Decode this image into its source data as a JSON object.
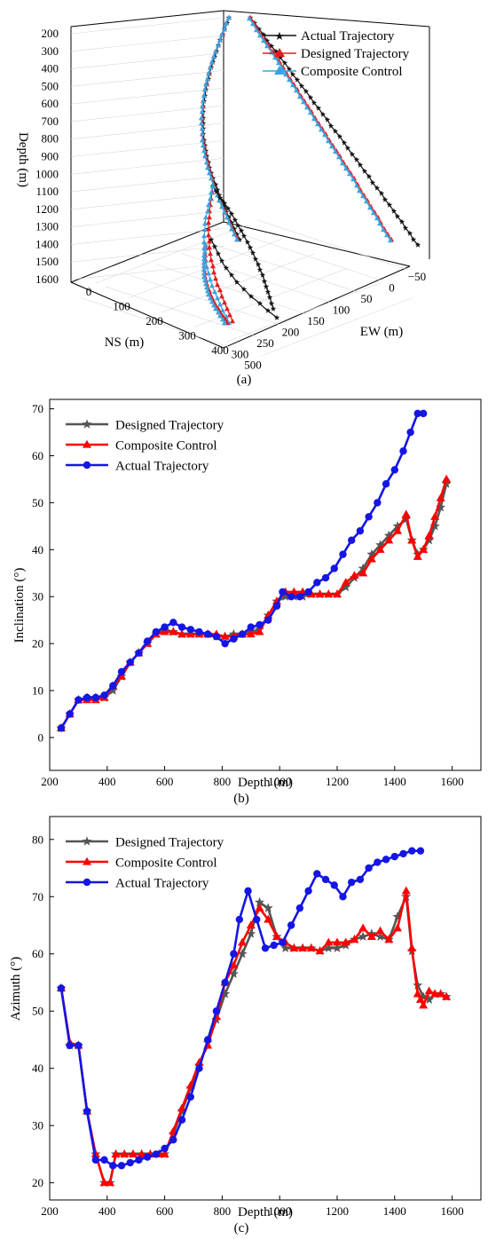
{
  "panel_a": {
    "caption": "(a)",
    "legend": [
      "Actual Trajectory",
      "Designed Trajectory",
      "Composite Control"
    ],
    "colors": {
      "actual": "#111111",
      "designed": "#e41a1c",
      "composite": "#3aa3e3"
    },
    "depth_label": "Depth (m)",
    "depth_ticks": [
      "200",
      "300",
      "400",
      "500",
      "600",
      "700",
      "800",
      "900",
      "1000",
      "1100",
      "1200",
      "1300",
      "1400",
      "1500",
      "1600"
    ],
    "ns_label": "NS (m)",
    "ns_ticks": [
      "0",
      "100",
      "200",
      "300",
      "400",
      "500"
    ],
    "ew_label": "EW (m)",
    "ew_ticks": [
      "−50",
      "0",
      "50",
      "100",
      "150",
      "200",
      "250",
      "300"
    ]
  },
  "chart_data": [
    {
      "type": "line",
      "caption": "(b)",
      "xlabel": "Depth (m)",
      "ylabel": "Inclination (°)",
      "xlim": [
        200,
        1700
      ],
      "ylim": [
        -7,
        72
      ],
      "xticks": [
        200,
        400,
        600,
        800,
        1000,
        1200,
        1400,
        1600
      ],
      "yticks": [
        0,
        10,
        20,
        30,
        40,
        50,
        60,
        70
      ],
      "series": [
        {
          "name": "Designed Trajectory",
          "color": "#555555",
          "marker": "star",
          "x": [
            240,
            270,
            300,
            330,
            360,
            390,
            420,
            450,
            480,
            510,
            540,
            570,
            600,
            630,
            660,
            690,
            720,
            750,
            780,
            810,
            840,
            870,
            900,
            930,
            960,
            990,
            1020,
            1050,
            1080,
            1110,
            1140,
            1170,
            1200,
            1230,
            1260,
            1290,
            1320,
            1350,
            1380,
            1410,
            1440,
            1460,
            1480,
            1500,
            1520,
            1540,
            1560,
            1580
          ],
          "y": [
            2,
            5,
            8,
            8.5,
            8.5,
            8.5,
            10,
            13,
            16,
            18,
            20,
            22,
            23,
            22.5,
            22,
            22,
            22,
            22,
            21.5,
            21.5,
            22,
            22,
            22.5,
            23,
            26,
            29,
            30,
            30,
            30,
            30.5,
            30.5,
            30.5,
            30.5,
            32,
            34,
            36,
            39,
            41,
            43,
            45,
            46.5,
            42,
            39,
            40,
            42,
            45,
            49,
            54
          ]
        },
        {
          "name": "Composite Control",
          "color": "#ff0000",
          "marker": "triangle",
          "x": [
            240,
            270,
            300,
            330,
            360,
            390,
            420,
            450,
            480,
            510,
            540,
            570,
            600,
            630,
            660,
            690,
            720,
            750,
            780,
            810,
            840,
            870,
            900,
            930,
            960,
            990,
            1020,
            1050,
            1080,
            1110,
            1140,
            1170,
            1200,
            1230,
            1260,
            1290,
            1320,
            1350,
            1380,
            1410,
            1440,
            1460,
            1480,
            1500,
            1520,
            1540,
            1560,
            1580
          ],
          "y": [
            2,
            5,
            8,
            8,
            8,
            8.5,
            11,
            13,
            16,
            18,
            20,
            22,
            22.5,
            22.5,
            22,
            22,
            22,
            22,
            22,
            21.5,
            21.5,
            22,
            22,
            22.5,
            26,
            29,
            31,
            31,
            31,
            30.5,
            30.5,
            30.5,
            30.5,
            33,
            34.5,
            35,
            38,
            40,
            42,
            44,
            47.5,
            42,
            38.5,
            40,
            43,
            47,
            51,
            55
          ]
        },
        {
          "name": "Actual Trajectory",
          "color": "#1515e6",
          "marker": "circle",
          "x": [
            240,
            270,
            300,
            330,
            360,
            390,
            420,
            450,
            480,
            510,
            540,
            570,
            600,
            630,
            660,
            690,
            720,
            750,
            780,
            810,
            840,
            870,
            900,
            930,
            960,
            990,
            1010,
            1040,
            1070,
            1100,
            1130,
            1160,
            1190,
            1220,
            1250,
            1280,
            1310,
            1340,
            1370,
            1400,
            1430,
            1455,
            1480,
            1500
          ],
          "y": [
            2,
            5,
            8,
            8.5,
            8.5,
            9,
            11,
            14,
            16,
            18,
            20.5,
            22.5,
            23.5,
            24.5,
            23.5,
            23,
            22.5,
            22,
            21.5,
            20,
            21,
            22,
            23.5,
            24,
            25,
            28,
            31,
            30,
            30,
            31,
            33,
            34,
            36,
            39,
            42,
            44,
            47,
            50,
            54,
            57,
            61,
            65,
            69,
            69
          ]
        }
      ]
    },
    {
      "type": "line",
      "caption": "(c)",
      "xlabel": "Depth (m)",
      "ylabel": "Azimuth (°)",
      "xlim": [
        200,
        1700
      ],
      "ylim": [
        17,
        84
      ],
      "xticks": [
        200,
        400,
        600,
        800,
        1000,
        1200,
        1400,
        1600
      ],
      "yticks": [
        20,
        30,
        40,
        50,
        60,
        70,
        80
      ],
      "series": [
        {
          "name": "Designed Trajectory",
          "color": "#555555",
          "marker": "star",
          "x": [
            240,
            270,
            300,
            330,
            360,
            390,
            410,
            430,
            460,
            490,
            520,
            550,
            580,
            600,
            630,
            660,
            690,
            720,
            750,
            780,
            810,
            840,
            870,
            900,
            930,
            960,
            990,
            1020,
            1050,
            1080,
            1110,
            1140,
            1170,
            1200,
            1230,
            1260,
            1290,
            1320,
            1350,
            1380,
            1410,
            1440,
            1460,
            1480,
            1500,
            1520,
            1540,
            1560,
            1580
          ],
          "y": [
            54,
            44,
            44,
            32.5,
            25,
            20,
            20,
            25,
            25,
            25,
            25,
            25,
            25,
            25,
            28.5,
            32.5,
            36.5,
            40.5,
            44.5,
            48.5,
            53,
            56.5,
            60,
            63.5,
            69,
            68,
            63,
            61,
            61,
            61,
            61,
            60.5,
            61,
            61,
            61.5,
            62.5,
            63,
            63.5,
            63,
            62.5,
            66.5,
            70,
            60.5,
            54.5,
            52.5,
            52,
            53,
            53,
            52.5
          ]
        },
        {
          "name": "Composite Control",
          "color": "#ff0000",
          "marker": "triangle",
          "x": [
            240,
            270,
            300,
            330,
            360,
            390,
            410,
            430,
            460,
            490,
            520,
            550,
            580,
            600,
            630,
            660,
            690,
            720,
            750,
            780,
            810,
            840,
            870,
            900,
            930,
            960,
            990,
            1020,
            1050,
            1080,
            1110,
            1140,
            1170,
            1200,
            1230,
            1260,
            1290,
            1320,
            1350,
            1380,
            1410,
            1440,
            1460,
            1480,
            1490,
            1500,
            1520,
            1540,
            1560,
            1580
          ],
          "y": [
            54,
            44.5,
            44,
            32.5,
            25,
            20,
            20,
            25,
            25,
            25,
            25,
            25,
            25,
            25,
            29,
            33,
            37,
            41,
            44,
            49,
            55,
            58,
            62,
            65,
            68,
            66,
            63,
            62,
            61,
            61,
            61,
            60.5,
            62,
            62,
            62,
            62.5,
            64.5,
            63,
            64,
            62.5,
            64.5,
            71,
            61,
            53,
            52,
            51,
            53.5,
            53,
            53,
            52.5
          ]
        },
        {
          "name": "Actual Trajectory",
          "color": "#1515e6",
          "marker": "circle",
          "x": [
            240,
            270,
            300,
            330,
            360,
            390,
            420,
            450,
            480,
            510,
            540,
            570,
            600,
            630,
            660,
            690,
            720,
            750,
            780,
            810,
            840,
            860,
            890,
            920,
            950,
            980,
            1010,
            1040,
            1070,
            1100,
            1130,
            1160,
            1190,
            1220,
            1250,
            1280,
            1310,
            1340,
            1370,
            1400,
            1430,
            1460,
            1490
          ],
          "y": [
            54,
            44,
            44,
            32.5,
            24,
            24,
            23,
            23,
            23.5,
            24,
            24.5,
            25,
            26,
            27.5,
            31,
            35,
            40,
            45,
            50,
            55,
            60,
            66,
            71,
            66,
            61,
            61.5,
            62,
            65,
            68,
            71,
            74,
            73,
            72,
            70,
            72.5,
            73,
            75,
            76,
            76.5,
            77,
            77.5,
            78,
            78
          ]
        }
      ]
    }
  ]
}
